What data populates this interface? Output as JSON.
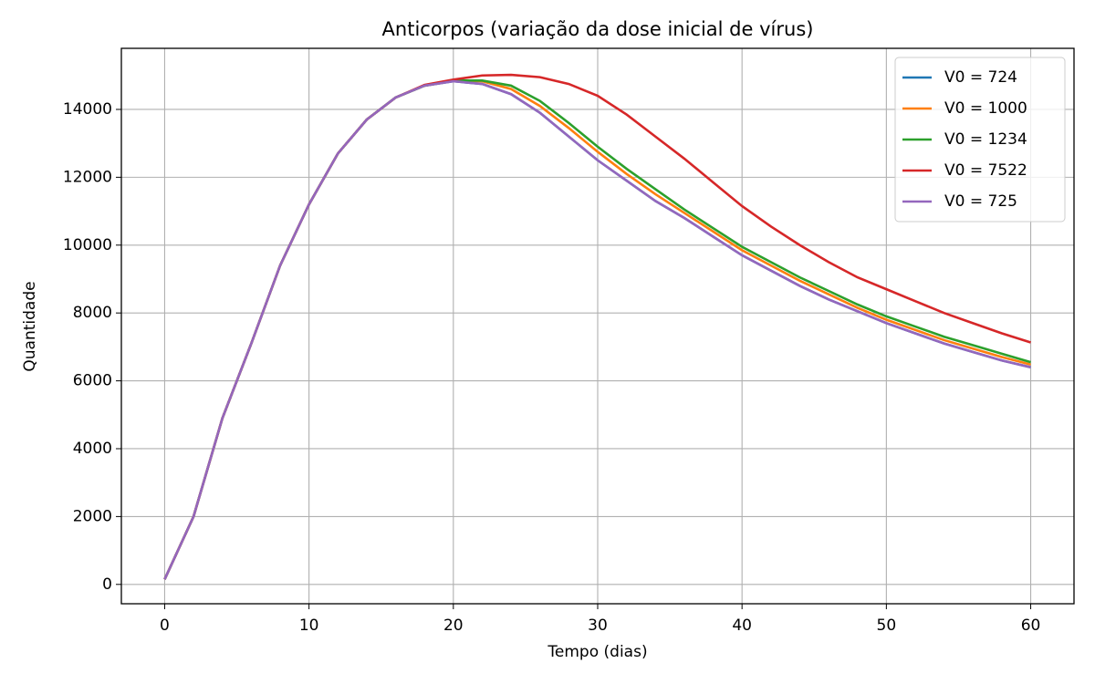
{
  "chart_data": {
    "type": "line",
    "title": "Anticorpos (variação da dose inicial de vírus)",
    "xlabel": "Tempo (dias)",
    "ylabel": "Quantidade",
    "x": [
      0,
      2,
      4,
      6,
      8,
      10,
      12,
      14,
      16,
      18,
      20,
      22,
      24,
      26,
      28,
      30,
      32,
      34,
      36,
      38,
      40,
      42,
      44,
      46,
      48,
      50,
      52,
      54,
      56,
      58,
      60
    ],
    "series": [
      {
        "name": "V0 = 724",
        "color": "#1f77b4",
        "values": [
          150,
          2000,
          4900,
          7100,
          9400,
          11200,
          12700,
          13700,
          14350,
          14700,
          14830,
          14750,
          14450,
          13900,
          13200,
          12500,
          11900,
          11300,
          10800,
          10250,
          9700,
          9250,
          8800,
          8400,
          8050,
          7700,
          7400,
          7100,
          6850,
          6600,
          6400
        ]
      },
      {
        "name": "V0 = 1000",
        "color": "#ff7f0e",
        "values": [
          150,
          2000,
          4900,
          7100,
          9400,
          11200,
          12700,
          13700,
          14350,
          14700,
          14840,
          14830,
          14600,
          14100,
          13450,
          12750,
          12100,
          11500,
          10950,
          10400,
          9850,
          9400,
          8950,
          8550,
          8150,
          7800,
          7500,
          7200,
          6950,
          6700,
          6480
        ]
      },
      {
        "name": "V0 = 1234",
        "color": "#2ca02c",
        "values": [
          150,
          2000,
          4900,
          7100,
          9400,
          11200,
          12700,
          13700,
          14350,
          14700,
          14850,
          14850,
          14700,
          14250,
          13600,
          12900,
          12250,
          11650,
          11050,
          10500,
          9950,
          9500,
          9050,
          8650,
          8250,
          7900,
          7600,
          7300,
          7050,
          6800,
          6550
        ]
      },
      {
        "name": "V0 = 7522",
        "color": "#d62728",
        "values": [
          150,
          2000,
          4900,
          7100,
          9400,
          11200,
          12700,
          13700,
          14350,
          14720,
          14880,
          15000,
          15020,
          14950,
          14750,
          14400,
          13850,
          13200,
          12550,
          11850,
          11150,
          10550,
          10000,
          9500,
          9050,
          8700,
          8350,
          8000,
          7700,
          7400,
          7130
        ]
      },
      {
        "name": "V0 = 725",
        "color": "#9467bd",
        "values": [
          150,
          2000,
          4900,
          7100,
          9400,
          11200,
          12700,
          13700,
          14350,
          14700,
          14830,
          14750,
          14450,
          13900,
          13200,
          12500,
          11900,
          11300,
          10800,
          10250,
          9700,
          9250,
          8800,
          8400,
          8050,
          7700,
          7400,
          7100,
          6850,
          6600,
          6400
        ]
      }
    ],
    "xlim": [
      -3,
      63
    ],
    "ylim": [
      -570,
      15800
    ],
    "xticks": [
      0,
      10,
      20,
      30,
      40,
      50,
      60
    ],
    "yticks": [
      0,
      2000,
      4000,
      6000,
      8000,
      10000,
      12000,
      14000
    ],
    "grid": true,
    "legend": "upper right"
  }
}
